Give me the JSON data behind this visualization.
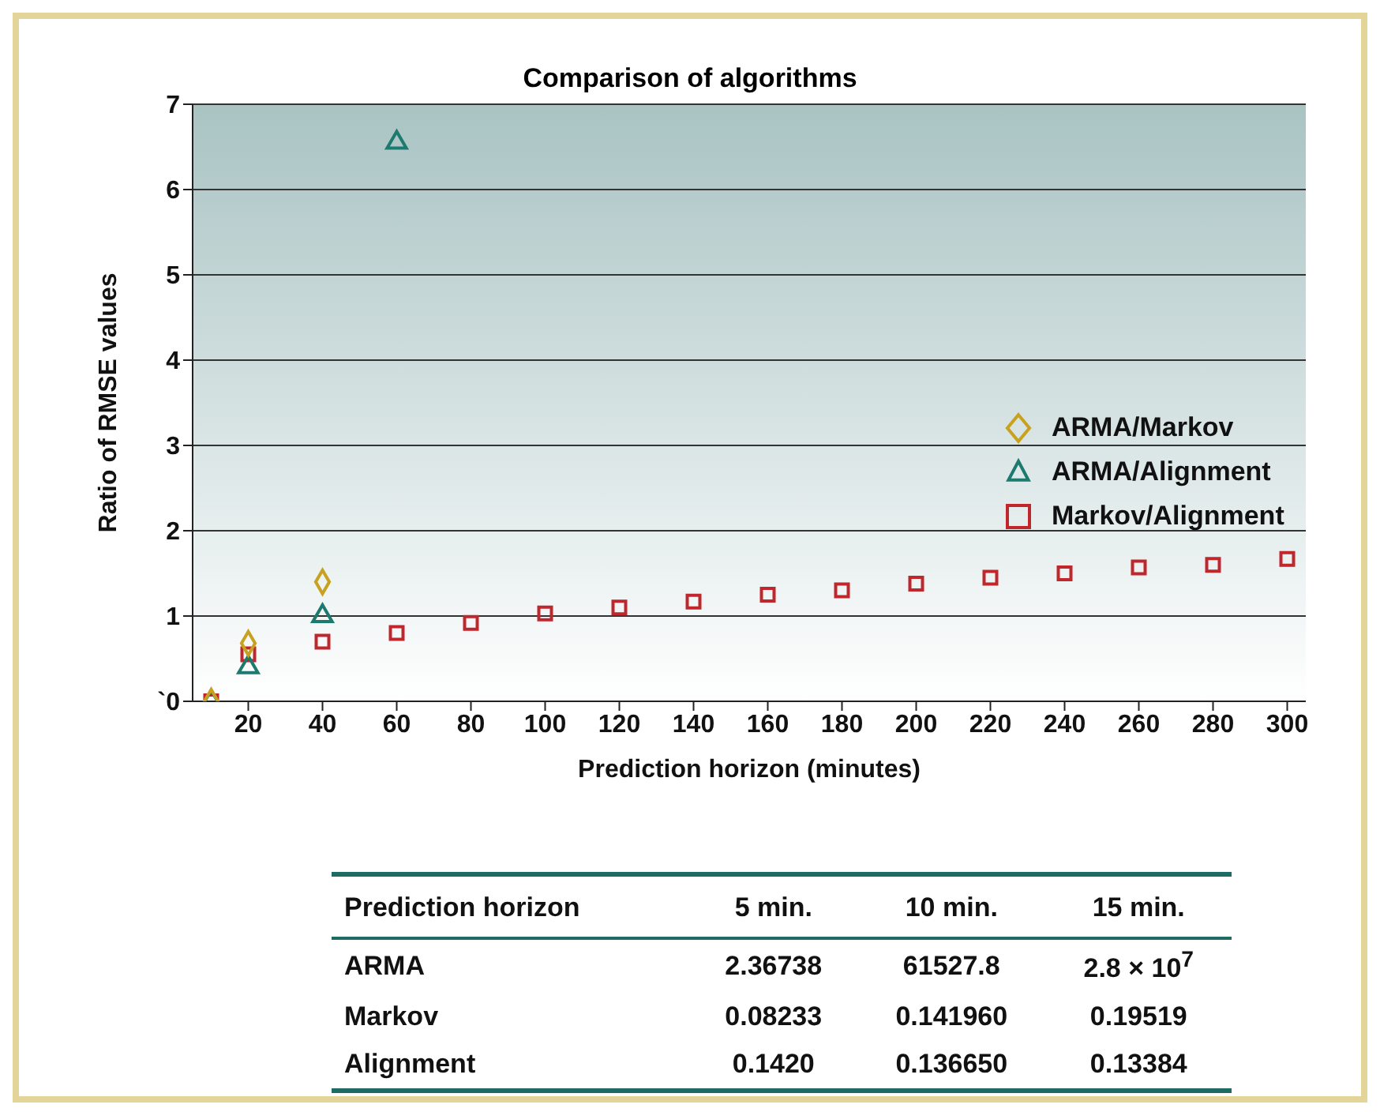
{
  "chart_data": {
    "type": "scatter",
    "title": "Comparison of algorithms",
    "xlabel": "Prediction horizon (minutes)",
    "ylabel": "Ratio of RMSE values",
    "xlim": [
      5,
      305
    ],
    "xticks": [
      20,
      40,
      60,
      80,
      100,
      120,
      140,
      160,
      180,
      200,
      220,
      240,
      260,
      280,
      300
    ],
    "ylim": [
      0,
      7
    ],
    "yticks": [
      {
        "value": 0,
        "label": "`0"
      },
      1,
      2,
      3,
      4,
      5,
      6,
      7
    ],
    "grid": "y",
    "legend": "right",
    "series": [
      {
        "name": "ARMA/Markov",
        "color": "#c8a21e",
        "marker": "diamond",
        "x": [
          10,
          20,
          40
        ],
        "values": [
          0,
          0.68,
          1.4
        ]
      },
      {
        "name": "ARMA/Alignment",
        "color": "#1d7a6e",
        "marker": "triangle",
        "x": [
          10,
          20,
          40,
          60
        ],
        "values": [
          0,
          0.4,
          1.0,
          6.55
        ]
      },
      {
        "name": "Markov/Alignment",
        "color": "#c0272d",
        "marker": "square",
        "x": [
          10,
          20,
          40,
          60,
          80,
          100,
          120,
          140,
          160,
          180,
          200,
          220,
          240,
          260,
          280,
          300
        ],
        "values": [
          0,
          0.55,
          0.7,
          0.8,
          0.92,
          1.03,
          1.1,
          1.17,
          1.25,
          1.3,
          1.38,
          1.45,
          1.5,
          1.57,
          1.6,
          1.67
        ]
      }
    ],
    "annotations": [
      "Prediction horizon",
      "5 min.",
      "10 min.",
      "15 min.",
      "ARMA",
      "2.36738",
      "61527.8",
      "2.8 × 10$^{7}$",
      "Markov",
      "0.08233",
      "0.141960",
      "0.19519",
      "Alignment",
      "0.1420",
      "0.136650",
      "0.13384"
    ]
  }
}
